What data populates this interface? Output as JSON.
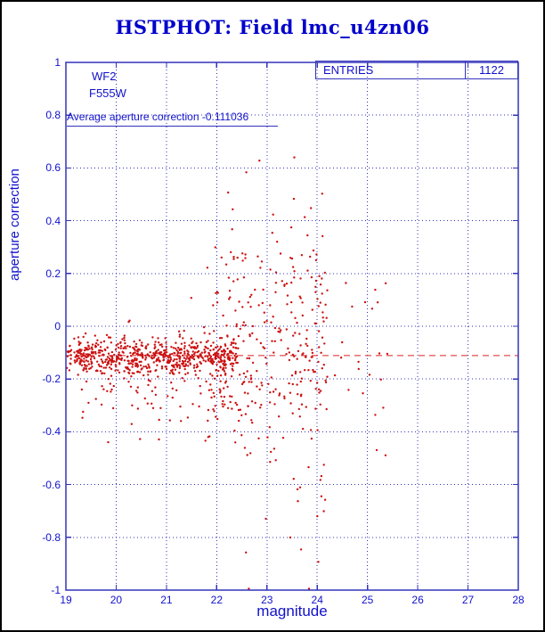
{
  "title": "HSTPHOT: Field lmc_u4zn06",
  "annotations": {
    "camera": "WF2",
    "filter": "F555W",
    "average_label": "Average aperture correction -0.111036"
  },
  "stats_box": {
    "label": "ENTRIES",
    "value": "1122"
  },
  "chart_data": {
    "type": "scatter",
    "title": "HSTPHOT: Field lmc_u4zn06",
    "xlabel": "magnitude",
    "ylabel": "aperture correction",
    "xlim": [
      19,
      28
    ],
    "ylim": [
      -1,
      1
    ],
    "x_ticks": [
      19,
      20,
      21,
      22,
      23,
      24,
      25,
      26,
      27,
      28
    ],
    "y_ticks": [
      -1,
      -0.8,
      -0.6,
      -0.4,
      -0.2,
      0,
      0.2,
      0.4,
      0.6,
      0.8,
      1
    ],
    "y_tick_labels": [
      "-1",
      "-0.8",
      "-0.6",
      "-0.4",
      "-0.2",
      "0",
      "0.2",
      "0.4",
      "0.6",
      "0.8",
      "1"
    ],
    "grid": "dotted",
    "legend": "none",
    "entries": 1122,
    "average_aperture_correction": -0.111036,
    "reference_line": {
      "y": -0.111036,
      "style": "dashed",
      "color": "#dd2222"
    },
    "colors": {
      "points": "#cc1111",
      "frame": "#3333bb",
      "grid": "#3333bb",
      "text": "#1111cc",
      "title": "#0000cc"
    },
    "points_spec": {
      "seed": 1122,
      "y_clamp": [
        -0.995,
        0.64
      ],
      "clusters": [
        {
          "n": 600,
          "x_min": 19.02,
          "x_max": 22.4,
          "y_mean": -0.115,
          "y_sd": 0.032
        },
        {
          "n": 180,
          "x_min": 19.3,
          "x_max": 22.7,
          "y_mean": -0.19,
          "y_sd": 0.11
        },
        {
          "n": 240,
          "x_min": 21.8,
          "x_max": 24.2,
          "y_mean": -0.08,
          "y_sd": 0.2
        },
        {
          "n": 80,
          "x_min": 22.5,
          "x_max": 24.15,
          "y_mean": -0.15,
          "y_sd": 0.42
        },
        {
          "n": 22,
          "x_min": 24.15,
          "x_max": 25.45,
          "y_mean": -0.12,
          "y_sd": 0.22
        }
      ]
    }
  }
}
